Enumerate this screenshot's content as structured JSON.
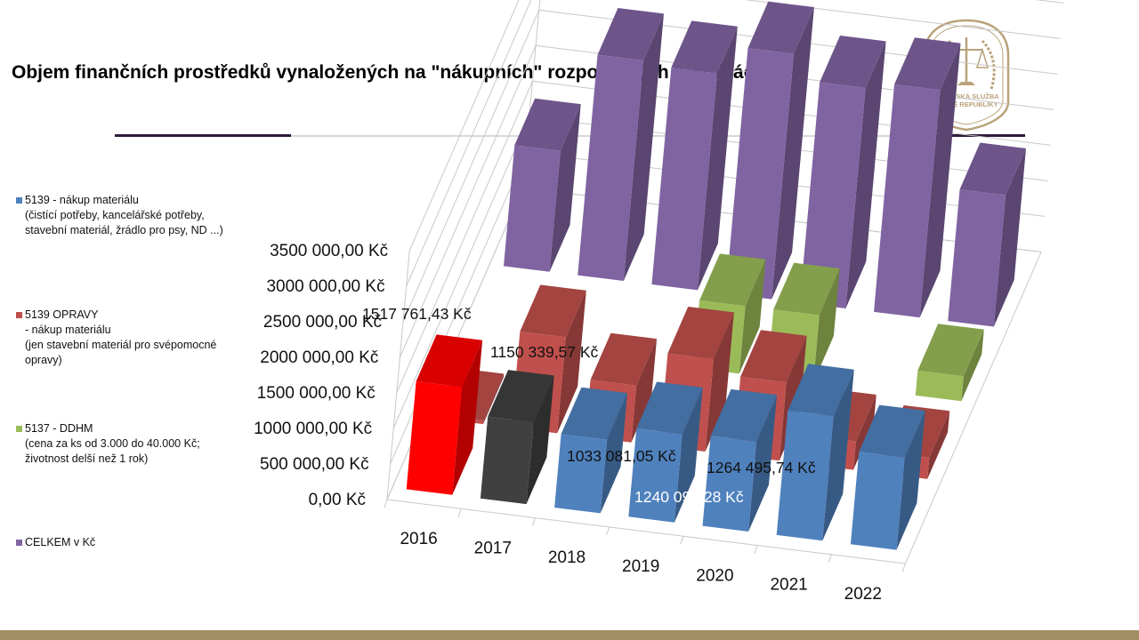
{
  "slide": {
    "title": "Objem finančních prostředků vynaložených na \"nákupních\" rozpočtových položkách"
  },
  "logo": {
    "text_line1": "VĚZEŇSKÁ SLUŽBA",
    "text_line2": "ČESKÉ REPUBLIKY",
    "color": "#b9a27a"
  },
  "colors": {
    "bottom_bar": "#a38d63",
    "title_rule": "#2e1a3a"
  },
  "legend": [
    {
      "label": "5139 - nákup materiálu\n  (čistící potřeby, kancelářské potřeby, stavební materiál, žrádlo pro psy, ND ...)",
      "color": "#4f81bd"
    },
    {
      "label": "5139 OPRAVY\n - nákup materiálu\n  (jen stavební materiál pro svépomocné opravy)",
      "color": "#c0504d"
    },
    {
      "label": "5137 - DDHM\n (cena za ks od 3.000 do 40.000 Kč; životnost delší než 1 rok)",
      "color": "#9bbb59"
    },
    {
      "label": "CELKEM v Kč",
      "color": "#8064a2"
    }
  ],
  "chart_data": {
    "type": "bar",
    "subtype": "3d-clustered-column",
    "categories": [
      "2016",
      "2017",
      "2018",
      "2019",
      "2020",
      "2021",
      "2022"
    ],
    "ylim": [
      0,
      3500000
    ],
    "ytick_labels": [
      "0,00 Kč",
      "500 000,00 Kč",
      "1000 000,00 Kč",
      "1500 000,00 Kč",
      "2000 000,00 Kč",
      "2500 000,00 Kč",
      "3000 000,00 Kč",
      "3500 000,00 Kč"
    ],
    "grid": true,
    "legend_position": "left",
    "series": [
      {
        "name": "5139 - nákup materiálu",
        "color": "#4f81bd",
        "point_colors": [
          "#ff0000",
          "#404040",
          null,
          null,
          null,
          null,
          null
        ],
        "values": [
          1517761.43,
          1150339.57,
          1033081.05,
          1240093.28,
          1264495.74,
          1750000,
          1300000
        ]
      },
      {
        "name": "5139 OPRAVY",
        "color": "#c0504d",
        "values": [
          50000,
          1350000,
          800000,
          1300000,
          1100000,
          400000,
          300000
        ]
      },
      {
        "name": "5137 - DDHM",
        "color": "#9bbb59",
        "values": [
          0,
          0,
          0,
          950000,
          950000,
          0,
          350000
        ]
      },
      {
        "name": "CELKEM v Kč",
        "color": "#8064a2",
        "values": [
          1700000,
          3100000,
          3050000,
          3450000,
          3100000,
          3200000,
          1850000
        ]
      }
    ],
    "data_labels": [
      {
        "text": "1517 761,43 Kč",
        "color": "#111111"
      },
      {
        "text": "1150 339,57 Kč",
        "color": "#111111"
      },
      {
        "text": "1033 081,05 Kč",
        "color": "#111111"
      },
      {
        "text": "1240 093,28 Kč",
        "color": "#ffffff"
      },
      {
        "text": "1264 495,74 Kč",
        "color": "#111111"
      }
    ]
  }
}
